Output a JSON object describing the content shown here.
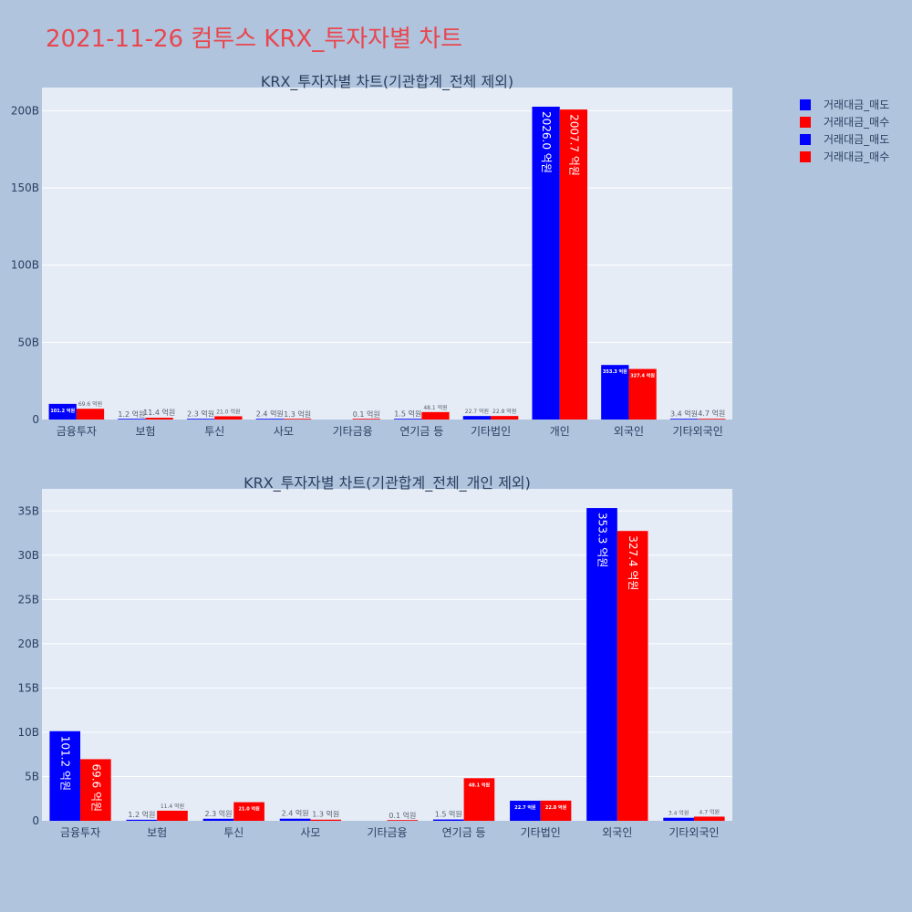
{
  "page_title": "2021-11-26 컴투스 KRX_투자자별 차트",
  "colors": {
    "sell": "#0000ff",
    "buy": "#ff0000",
    "plot_bg": "#e5ecf6",
    "page_bg": "#b0c4de"
  },
  "legend": [
    {
      "label": "거래대금_매도",
      "color": "#0000ff"
    },
    {
      "label": "거래대금_매수",
      "color": "#ff0000"
    },
    {
      "label": "거래대금_매도",
      "color": "#0000ff"
    },
    {
      "label": "거래대금_매수",
      "color": "#ff0000"
    }
  ],
  "chart_data": [
    {
      "type": "bar",
      "title": "KRX_투자자별 차트(기관합계_전체 제외)",
      "categories": [
        "금융투자",
        "보험",
        "투신",
        "사모",
        "기타금융",
        "연기금 등",
        "기타법인",
        "개인",
        "외국인",
        "기타외국인"
      ],
      "ylim": [
        0,
        215
      ],
      "yticks": [
        0,
        50,
        100,
        150,
        200
      ],
      "ytick_labels": [
        "0",
        "50B",
        "100B",
        "150B",
        "200B"
      ],
      "series": [
        {
          "name": "거래대금_매도",
          "values": [
            10.12,
            0.12,
            0.23,
            0.24,
            0,
            0.15,
            2.27,
            202.6,
            35.33,
            0.34
          ],
          "labels": [
            "101.2 억원",
            "1.2 억원",
            "2.3 억원",
            "2.4 억원",
            "",
            "1.5 억원",
            "22.7 억원",
            "2026.0 억원",
            "353.3 억원",
            "3.4 억원"
          ]
        },
        {
          "name": "거래대금_매수",
          "values": [
            6.96,
            1.14,
            2.1,
            0.13,
            0.01,
            4.81,
            2.28,
            200.77,
            32.74,
            0.47
          ],
          "labels": [
            "69.6 억원",
            "11.4 억원",
            "21.0 억원",
            "1.3 억원",
            "0.1 억원",
            "48.1 억원",
            "22.8 억원",
            "2007.7 억원",
            "327.4 억원",
            "4.7 억원"
          ]
        }
      ]
    },
    {
      "type": "bar",
      "title": "KRX_투자자별 차트(기관합계_전체_개인 제외)",
      "categories": [
        "금융투자",
        "보험",
        "투신",
        "사모",
        "기타금융",
        "연기금 등",
        "기타법인",
        "외국인",
        "기타외국인"
      ],
      "ylim": [
        0,
        37.5
      ],
      "yticks": [
        0,
        5,
        10,
        15,
        20,
        25,
        30,
        35
      ],
      "ytick_labels": [
        "0",
        "5B",
        "10B",
        "15B",
        "20B",
        "25B",
        "30B",
        "35B"
      ],
      "series": [
        {
          "name": "거래대금_매도",
          "values": [
            10.12,
            0.12,
            0.23,
            0.24,
            0,
            0.15,
            2.27,
            35.33,
            0.34
          ],
          "labels": [
            "101.2 억원",
            "1.2 억원",
            "2.3 억원",
            "2.4 억원",
            "",
            "1.5 억원",
            "22.7 억원",
            "353.3 억원",
            "3.4 억원"
          ]
        },
        {
          "name": "거래대금_매수",
          "values": [
            6.96,
            1.14,
            2.1,
            0.13,
            0.01,
            4.81,
            2.28,
            32.74,
            0.47
          ],
          "labels": [
            "69.6 억원",
            "11.4 억원",
            "21.0 억원",
            "1.3 억원",
            "0.1 억원",
            "48.1 억원",
            "22.8 억원",
            "327.4 억원",
            "4.7 억원"
          ]
        }
      ]
    }
  ]
}
